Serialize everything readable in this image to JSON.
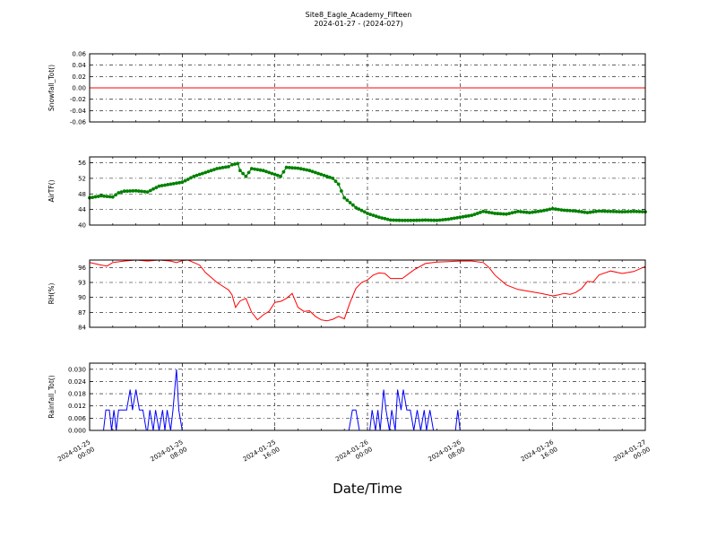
{
  "figure": {
    "title": "Site8_Eagle_Academy_Fifteen",
    "subtitle": "2024-01-27 - (2024-027)",
    "xlabel": "Date/Time",
    "x_ticks": [
      [
        "2024-01-25",
        "00:00"
      ],
      [
        "2024-01-25",
        "08:00"
      ],
      [
        "2024-01-25",
        "16:00"
      ],
      [
        "2024-01-26",
        "00:00"
      ],
      [
        "2024-01-26",
        "08:00"
      ],
      [
        "2024-01-26",
        "16:00"
      ],
      [
        "2024-01-27",
        "00:00"
      ]
    ]
  },
  "chart_data": [
    {
      "type": "line",
      "ylabel": "Snowfall_Tot()",
      "color": "#ff0000",
      "marker": "none",
      "xlim": [
        0,
        48
      ],
      "ylim": [
        -0.06,
        0.06
      ],
      "yticks": [
        "0.06",
        "0.04",
        "0.02",
        "0.00",
        "-0.02",
        "-0.04",
        "-0.06"
      ],
      "x": [
        0,
        48
      ],
      "y": [
        0.0,
        0.0
      ]
    },
    {
      "type": "line",
      "ylabel": "AirTF()",
      "color": "#008000",
      "marker": "dot",
      "xlim": [
        0,
        48
      ],
      "ylim": [
        40,
        57.5
      ],
      "yticks": [
        "56",
        "52",
        "48",
        "44",
        "40"
      ],
      "x": [
        0,
        1,
        2,
        2.5,
        3,
        4,
        5,
        6,
        7,
        8,
        9,
        10,
        11,
        12,
        12.3,
        12.8,
        13,
        13.5,
        14,
        15,
        15.5,
        16,
        16.5,
        17,
        18,
        19,
        20,
        20.5,
        21,
        21.5,
        22,
        23,
        24,
        25,
        26,
        27,
        28,
        29,
        30,
        31,
        32,
        33,
        34,
        35,
        36,
        37,
        38,
        39,
        40,
        41,
        42,
        43,
        44,
        45,
        46,
        47,
        48
      ],
      "y": [
        47,
        47.5,
        47.2,
        48.3,
        48.7,
        48.8,
        48.5,
        50,
        50.5,
        51,
        52.5,
        53.5,
        54.5,
        55,
        55.5,
        55.8,
        54,
        52.5,
        54.5,
        54,
        53.5,
        53,
        52.5,
        54.8,
        54.6,
        54,
        53,
        52.5,
        52,
        50.5,
        47,
        44.5,
        43,
        42,
        41.3,
        41.2,
        41.2,
        41.3,
        41.2,
        41.5,
        42,
        42.5,
        43.5,
        43,
        42.8,
        43.5,
        43.2,
        43.6,
        44.2,
        43.8,
        43.6,
        43.2,
        43.6,
        43.5,
        43.4,
        43.5,
        43.4
      ]
    },
    {
      "type": "line",
      "ylabel": "RH(%)",
      "color": "#ff0000",
      "marker": "none",
      "xlim": [
        0,
        48
      ],
      "ylim": [
        84,
        97.5
      ],
      "yticks": [
        "96",
        "93",
        "90",
        "87",
        "84"
      ],
      "x": [
        0,
        1,
        1.5,
        2,
        3,
        4,
        5,
        6,
        7,
        7.5,
        8,
        8.5,
        9,
        9.5,
        10,
        11,
        12,
        12.3,
        12.6,
        13,
        13.5,
        14,
        14.5,
        15,
        15.5,
        16,
        16.5,
        17,
        17.5,
        18,
        18.5,
        19,
        19.5,
        20,
        20.5,
        21,
        21.5,
        22,
        22.5,
        23,
        23.5,
        24,
        24.5,
        25,
        25.5,
        26,
        27,
        28,
        29,
        30,
        31,
        32,
        33,
        34,
        34.5,
        35,
        36,
        37,
        38,
        39,
        40,
        40.5,
        41,
        41.5,
        42,
        42.5,
        43,
        43.5,
        44,
        45,
        46,
        47,
        48
      ],
      "y": [
        97,
        96.5,
        96.3,
        97,
        97.3,
        97.5,
        97.3,
        97.5,
        97.3,
        97,
        97.4,
        97.5,
        97,
        96.5,
        95,
        93,
        91.5,
        90.5,
        88,
        89.3,
        89.8,
        87,
        85.5,
        86.5,
        87.2,
        89,
        89.2,
        89.8,
        90.8,
        88,
        87.2,
        87.3,
        86.2,
        85.5,
        85.3,
        85.6,
        86.2,
        85.7,
        89,
        91.8,
        93,
        93.5,
        94.5,
        94.9,
        94.8,
        93.8,
        93.8,
        95.5,
        96.8,
        97.1,
        97.2,
        97.3,
        97.3,
        97,
        96,
        94.5,
        92.5,
        91.6,
        91.2,
        90.8,
        90.3,
        90.5,
        90.8,
        90.6,
        91,
        91.8,
        93.2,
        93.1,
        94.5,
        95.3,
        94.8,
        95.2,
        96.2
      ]
    },
    {
      "type": "line",
      "ylabel": "Rainfall_Tot()",
      "color": "#0000ff",
      "marker": "none",
      "xlim": [
        0,
        48
      ],
      "ylim": [
        0,
        0.033
      ],
      "yticks": [
        "0.030",
        "0.024",
        "0.018",
        "0.012",
        "0.006",
        "0.000"
      ],
      "x": [
        0,
        1.2,
        1.4,
        1.7,
        1.9,
        2.1,
        2.3,
        2.5,
        2.7,
        3.2,
        3.5,
        3.7,
        4,
        4.3,
        4.6,
        4.9,
        5,
        5.2,
        5.5,
        5.7,
        6,
        6.3,
        6.5,
        6.7,
        7,
        7.2,
        7.5,
        7.7,
        8,
        8.3,
        8.5,
        8.7,
        9,
        22.4,
        22.7,
        23,
        23.3,
        24.2,
        24.4,
        24.7,
        24.9,
        25.1,
        25.4,
        25.6,
        25.9,
        26.1,
        26.4,
        26.6,
        26.9,
        27.1,
        27.4,
        27.7,
        28,
        28.3,
        28.6,
        28.9,
        29.1,
        29.4,
        29.7,
        30,
        30.2,
        31.6,
        31.8,
        32,
        48
      ],
      "y": [
        0,
        0,
        0.01,
        0.01,
        0,
        0.01,
        0,
        0.01,
        0.01,
        0.01,
        0.02,
        0.01,
        0.02,
        0.01,
        0.01,
        0,
        0,
        0.01,
        0,
        0.01,
        0,
        0.01,
        0,
        0.01,
        0,
        0.01,
        0.03,
        0.01,
        0,
        0,
        0,
        0,
        0,
        0,
        0.01,
        0.01,
        0,
        0,
        0.01,
        0,
        0.01,
        0,
        0.02,
        0.01,
        0,
        0.01,
        0,
        0.02,
        0.01,
        0.02,
        0.01,
        0.01,
        0,
        0.01,
        0,
        0.01,
        0,
        0.01,
        0,
        0,
        0,
        0,
        0.01,
        0,
        0
      ]
    }
  ]
}
